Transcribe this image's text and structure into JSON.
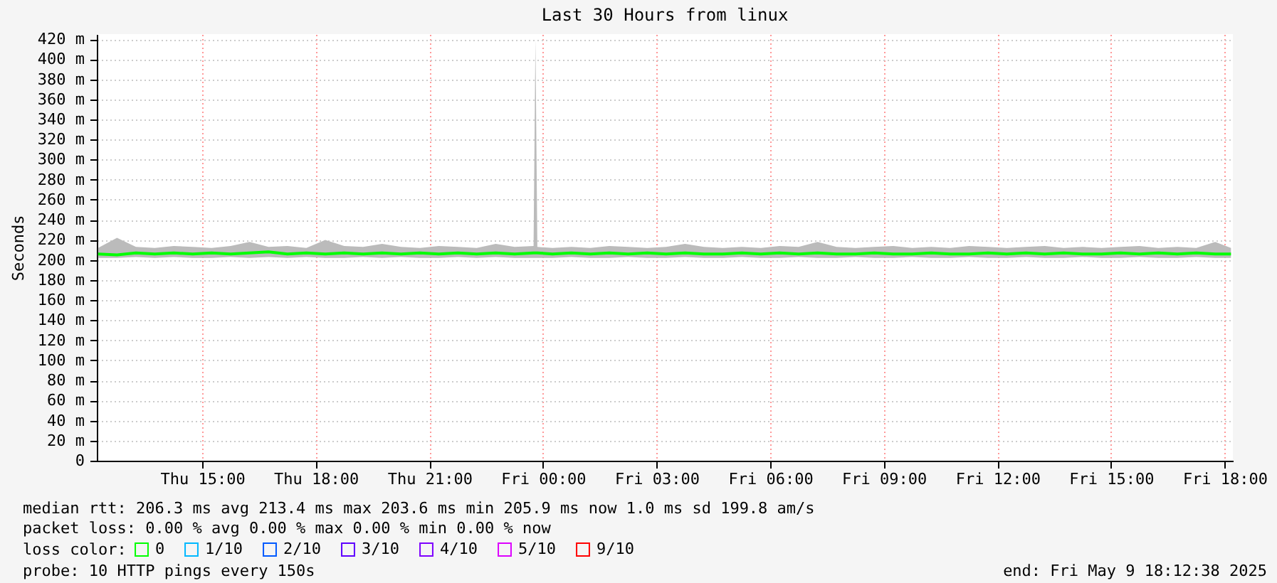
{
  "chart_data": {
    "type": "line",
    "title": "Last 30 Hours from linux",
    "ylabel": "Seconds",
    "x": [
      "2025-05-08T12:15",
      "2025-05-08T12:45",
      "2025-05-08T13:15",
      "2025-05-08T13:45",
      "2025-05-08T14:15",
      "2025-05-08T14:45",
      "2025-05-08T15:15",
      "2025-05-08T15:45",
      "2025-05-08T16:15",
      "2025-05-08T16:45",
      "2025-05-08T17:15",
      "2025-05-08T17:45",
      "2025-05-08T18:15",
      "2025-05-08T18:45",
      "2025-05-08T19:15",
      "2025-05-08T19:45",
      "2025-05-08T20:15",
      "2025-05-08T20:45",
      "2025-05-08T21:15",
      "2025-05-08T21:45",
      "2025-05-08T22:15",
      "2025-05-08T22:45",
      "2025-05-08T23:15",
      "2025-05-08T23:45",
      "2025-05-08T23:48",
      "2025-05-08T23:51",
      "2025-05-09T00:15",
      "2025-05-09T00:45",
      "2025-05-09T01:15",
      "2025-05-09T01:45",
      "2025-05-09T02:15",
      "2025-05-09T02:45",
      "2025-05-09T03:15",
      "2025-05-09T03:45",
      "2025-05-09T04:15",
      "2025-05-09T04:45",
      "2025-05-09T05:15",
      "2025-05-09T05:45",
      "2025-05-09T06:15",
      "2025-05-09T06:45",
      "2025-05-09T07:15",
      "2025-05-09T07:45",
      "2025-05-09T08:15",
      "2025-05-09T08:45",
      "2025-05-09T09:15",
      "2025-05-09T09:45",
      "2025-05-09T10:15",
      "2025-05-09T10:45",
      "2025-05-09T11:15",
      "2025-05-09T11:45",
      "2025-05-09T12:15",
      "2025-05-09T12:45",
      "2025-05-09T13:15",
      "2025-05-09T13:45",
      "2025-05-09T14:15",
      "2025-05-09T14:45",
      "2025-05-09T15:15",
      "2025-05-09T15:45",
      "2025-05-09T16:15",
      "2025-05-09T16:45",
      "2025-05-09T17:15",
      "2025-05-09T17:45",
      "2025-05-09T18:10"
    ],
    "series": [
      {
        "name": "0",
        "color": "#00ff00",
        "values": [
          206,
          205,
          207,
          206,
          207,
          206,
          207,
          206,
          207,
          208,
          206,
          207,
          206,
          207,
          206,
          207,
          206,
          207,
          206,
          207,
          206,
          207,
          206,
          207,
          207,
          207,
          206,
          207,
          206,
          207,
          206,
          207,
          206,
          207,
          206,
          206,
          207,
          206,
          207,
          206,
          207,
          206,
          206,
          207,
          206,
          206,
          207,
          206,
          206,
          207,
          206,
          207,
          206,
          207,
          206,
          206,
          207,
          206,
          207,
          206,
          207,
          206,
          206
        ],
        "lower": [
          202,
          202,
          203,
          202,
          203,
          202,
          202,
          203,
          202,
          203,
          202,
          203,
          202,
          202,
          203,
          202,
          203,
          202,
          202,
          203,
          202,
          203,
          202,
          202,
          202,
          202,
          202,
          203,
          202,
          202,
          203,
          202,
          202,
          203,
          202,
          202,
          203,
          202,
          202,
          203,
          202,
          202,
          203,
          202,
          202,
          203,
          202,
          202,
          203,
          202,
          202,
          203,
          202,
          202,
          203,
          202,
          202,
          203,
          202,
          202,
          203,
          202,
          202
        ],
        "upper": [
          212,
          222,
          213,
          212,
          214,
          213,
          212,
          214,
          218,
          213,
          214,
          212,
          220,
          214,
          213,
          216,
          213,
          212,
          214,
          213,
          212,
          216,
          213,
          214,
          420,
          213,
          212,
          213,
          212,
          214,
          213,
          212,
          213,
          216,
          213,
          212,
          213,
          212,
          214,
          213,
          218,
          213,
          212,
          213,
          214,
          212,
          213,
          212,
          214,
          213,
          212,
          213,
          214,
          212,
          213,
          212,
          213,
          214,
          212,
          213,
          212,
          218,
          212
        ]
      },
      {
        "name": "1/10",
        "color": "#00b8ff",
        "values": [
          null,
          null,
          null,
          null,
          null,
          null,
          null,
          null,
          null,
          null,
          null,
          null,
          null,
          null,
          null,
          null,
          null,
          null,
          null,
          null,
          null,
          null,
          null,
          null,
          null,
          null,
          null,
          null,
          null,
          null,
          null,
          null,
          null,
          null,
          null,
          null,
          null,
          null,
          null,
          null,
          null,
          null,
          null,
          null,
          null,
          null,
          null,
          null,
          null,
          null,
          null,
          null,
          null,
          null,
          null,
          null,
          null,
          null,
          null,
          null,
          null,
          null,
          null
        ]
      },
      {
        "name": "2/10",
        "color": "#0059ff",
        "values": [
          null,
          null,
          null,
          null,
          null,
          null,
          null,
          null,
          null,
          null,
          null,
          null,
          null,
          null,
          null,
          null,
          null,
          null,
          null,
          null,
          null,
          null,
          null,
          null,
          null,
          null,
          null,
          null,
          null,
          null,
          null,
          null,
          null,
          null,
          null,
          null,
          null,
          null,
          null,
          null,
          null,
          null,
          null,
          null,
          null,
          null,
          null,
          null,
          null,
          null,
          null,
          null,
          null,
          null,
          null,
          null,
          null,
          null,
          null,
          null,
          null,
          null,
          null
        ]
      },
      {
        "name": "3/10",
        "color": "#5e00ff",
        "values": [
          null,
          null,
          null,
          null,
          null,
          null,
          null,
          null,
          null,
          null,
          null,
          null,
          null,
          null,
          null,
          null,
          null,
          null,
          null,
          null,
          null,
          null,
          null,
          null,
          null,
          null,
          null,
          null,
          null,
          null,
          null,
          null,
          null,
          null,
          null,
          null,
          null,
          null,
          null,
          null,
          null,
          null,
          null,
          null,
          null,
          null,
          null,
          null,
          null,
          null,
          null,
          null,
          null,
          null,
          null,
          null,
          null,
          null,
          null,
          null,
          null,
          null,
          null
        ]
      },
      {
        "name": "4/10",
        "color": "#7e00ff",
        "values": [
          null,
          null,
          null,
          null,
          null,
          null,
          null,
          null,
          null,
          null,
          null,
          null,
          null,
          null,
          null,
          null,
          null,
          null,
          null,
          null,
          null,
          null,
          null,
          null,
          null,
          null,
          null,
          null,
          null,
          null,
          null,
          null,
          null,
          null,
          null,
          null,
          null,
          null,
          null,
          null,
          null,
          null,
          null,
          null,
          null,
          null,
          null,
          null,
          null,
          null,
          null,
          null,
          null,
          null,
          null,
          null,
          null,
          null,
          null,
          null,
          null,
          null,
          null
        ]
      },
      {
        "name": "5/10",
        "color": "#dd00ff",
        "values": [
          null,
          null,
          null,
          null,
          null,
          null,
          null,
          null,
          null,
          null,
          null,
          null,
          null,
          null,
          null,
          null,
          null,
          null,
          null,
          null,
          null,
          null,
          null,
          null,
          null,
          null,
          null,
          null,
          null,
          null,
          null,
          null,
          null,
          null,
          null,
          null,
          null,
          null,
          null,
          null,
          null,
          null,
          null,
          null,
          null,
          null,
          null,
          null,
          null,
          null,
          null,
          null,
          null,
          null,
          null,
          null,
          null,
          null,
          null,
          null,
          null,
          null,
          null
        ]
      },
      {
        "name": "9/10",
        "color": "#ff0000",
        "values": [
          null,
          null,
          null,
          null,
          null,
          null,
          null,
          null,
          null,
          null,
          null,
          null,
          null,
          null,
          null,
          null,
          null,
          null,
          null,
          null,
          null,
          null,
          null,
          null,
          null,
          null,
          null,
          null,
          null,
          null,
          null,
          null,
          null,
          null,
          null,
          null,
          null,
          null,
          null,
          null,
          null,
          null,
          null,
          null,
          null,
          null,
          null,
          null,
          null,
          null,
          null,
          null,
          null,
          null,
          null,
          null,
          null,
          null,
          null,
          null,
          null,
          null,
          null
        ]
      }
    ],
    "legend_title": "loss color:",
    "legend": "bottom left",
    "xlim": [
      "2025-05-08T12:13",
      "2025-05-09T18:13"
    ],
    "xticks": [
      {
        "value": "2025-05-08T15:00",
        "label": "Thu 15:00"
      },
      {
        "value": "2025-05-08T18:00",
        "label": "Thu 18:00"
      },
      {
        "value": "2025-05-08T21:00",
        "label": "Thu 21:00"
      },
      {
        "value": "2025-05-09T00:00",
        "label": "Fri 00:00"
      },
      {
        "value": "2025-05-09T03:00",
        "label": "Fri 03:00"
      },
      {
        "value": "2025-05-09T06:00",
        "label": "Fri 06:00"
      },
      {
        "value": "2025-05-09T09:00",
        "label": "Fri 09:00"
      },
      {
        "value": "2025-05-09T12:00",
        "label": "Fri 12:00"
      },
      {
        "value": "2025-05-09T15:00",
        "label": "Fri 15:00"
      },
      {
        "value": "2025-05-09T18:00",
        "label": "Fri 18:00"
      }
    ],
    "ylim": [
      0,
      425
    ],
    "yticks": [
      0,
      {
        "value": 20,
        "label": "20 m"
      },
      {
        "value": 40,
        "label": "40 m"
      },
      {
        "value": 60,
        "label": "60 m"
      },
      {
        "value": 80,
        "label": "80 m"
      },
      {
        "value": 100,
        "label": "100 m"
      },
      {
        "value": 120,
        "label": "120 m"
      },
      {
        "value": 140,
        "label": "140 m"
      },
      {
        "value": 160,
        "label": "160 m"
      },
      {
        "value": 180,
        "label": "180 m"
      },
      {
        "value": 200,
        "label": "200 m"
      },
      {
        "value": 220,
        "label": "220 m"
      },
      {
        "value": 240,
        "label": "240 m"
      },
      {
        "value": 260,
        "label": "260 m"
      },
      {
        "value": 280,
        "label": "280 m"
      },
      {
        "value": 300,
        "label": "300 m"
      },
      {
        "value": 320,
        "label": "320 m"
      },
      {
        "value": 340,
        "label": "340 m"
      },
      {
        "value": 360,
        "label": "360 m"
      },
      {
        "value": 380,
        "label": "380 m"
      },
      {
        "value": 400,
        "label": "400 m"
      },
      {
        "value": 420,
        "label": "420 m"
      }
    ],
    "grid": true,
    "marker": "none",
    "line_style": "solid",
    "annotations": [
      "median rtt:  206.3 ms avg  213.4 ms max  203.6 ms min  205.9 ms now  1.0 ms sd  199.8   am/s",
      "packet loss: 0.00 % avg  0.00 % max  0.00 % min  0.00 % now",
      "probe:       10 HTTP pings every 150s",
      "end: Fri May  9 18:12:38 2025"
    ]
  }
}
